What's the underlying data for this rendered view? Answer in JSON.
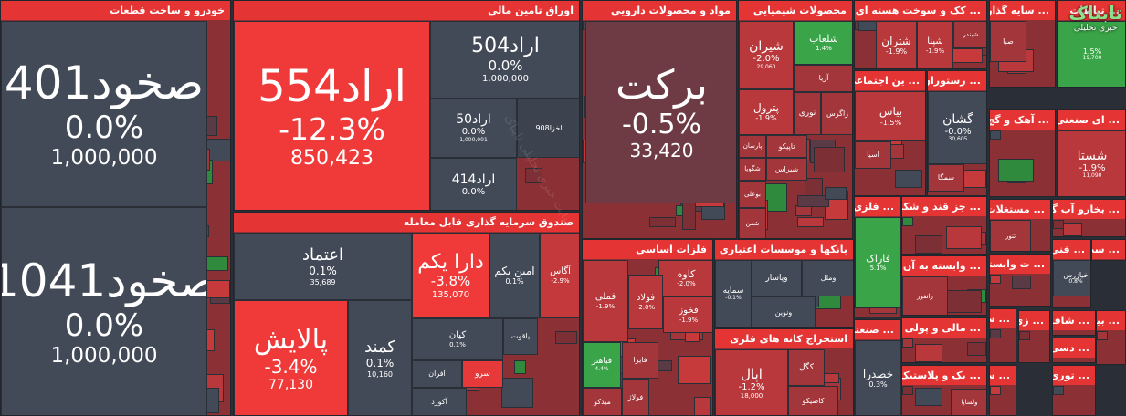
{
  "logo": {
    "title": "تابناک",
    "subtitle": "خبری تحلیلی"
  },
  "watermark": "سایت خبری تحلیلی تابناک",
  "sectors": [
    {
      "title": "خودرو و ساخت قطعات",
      "tiles": [
        {
          "name": "صخود401",
          "change": "0.0%",
          "volume": "1,000,000",
          "color": "#434a57"
        },
        {
          "name": "صخود1041",
          "change": "0.0%",
          "volume": "1,000,000",
          "color": "#434a57"
        }
      ]
    },
    {
      "title": "اوراق تامین مالی",
      "tiles": [
        {
          "name": "اراد554",
          "change": "-12.3%",
          "volume": "850,423",
          "color": "#f03a3a"
        },
        {
          "name": "اراد504",
          "change": "0.0%",
          "volume": "1,000,000",
          "color": "#434a57"
        },
        {
          "name": "اراد50",
          "change": "0.0%",
          "volume": "1,000,001",
          "color": "#434a57"
        },
        {
          "name": "اخزا908",
          "color": "#3c434f"
        },
        {
          "name": "اراد414",
          "change": "0.0%",
          "color": "#434a57"
        }
      ]
    },
    {
      "title": "صندوق سرمایه گذاری قابل معامله",
      "tiles": [
        {
          "name": "اعتماد",
          "change": "0.1%",
          "volume": "35,689",
          "color": "#434a57"
        },
        {
          "name": "پالایش",
          "change": "-3.4%",
          "volume": "77,130",
          "color": "#f03a3a"
        },
        {
          "name": "کمند",
          "change": "0.1%",
          "volume": "10,160",
          "color": "#434a57"
        },
        {
          "name": "دارا یکم",
          "change": "-3.8%",
          "volume": "135,070",
          "color": "#f03a3a"
        },
        {
          "name": "امین یکم",
          "change": "0.1%",
          "color": "#434a57"
        },
        {
          "name": "آگاس",
          "change": "-2.9%",
          "color": "#c4393c"
        },
        {
          "name": "کیان",
          "change": "0.1%",
          "color": "#434a57"
        },
        {
          "name": "یاقوت",
          "color": "#434a57"
        },
        {
          "name": "افران",
          "color": "#434a57"
        },
        {
          "name": "سرو",
          "color": "#e63a3a"
        },
        {
          "name": "آکورد",
          "color": "#434a57"
        }
      ]
    },
    {
      "title": "مواد و محصولات دارویی",
      "tiles": [
        {
          "name": "برکت",
          "change": "-0.5%",
          "volume": "33,420",
          "color": "#6e3b45"
        }
      ]
    },
    {
      "title": "محصولات شیمیایی",
      "tiles": [
        {
          "name": "شیران",
          "change": "-2.0%",
          "volume": "29,060",
          "color": "#b8383b"
        },
        {
          "name": "شلعاب",
          "change": "1.4%",
          "color": "#3aa548"
        },
        {
          "name": "آریا",
          "color": "#a3363a"
        },
        {
          "name": "پترول",
          "change": "-1.9%",
          "color": "#b8383b"
        },
        {
          "name": "نوری",
          "color": "#a3363a"
        },
        {
          "name": "زاگرس",
          "color": "#a3363a"
        },
        {
          "name": "پارسان",
          "color": "#a3363a"
        },
        {
          "name": "تاپیکو",
          "color": "#a3363a"
        },
        {
          "name": "شگویا",
          "color": "#a3363a"
        },
        {
          "name": "شیراس",
          "color": "#a3363a"
        },
        {
          "name": "بوعلی",
          "color": "#a3363a"
        },
        {
          "name": "شفن",
          "color": "#a3363a"
        }
      ]
    },
    {
      "title": "... کک و سوخت هسته ای",
      "tiles": [
        {
          "name": "شتران",
          "change": "-1.9%",
          "color": "#b8383b"
        },
        {
          "name": "شپنا",
          "change": "-1.9%",
          "color": "#b8383b"
        },
        {
          "name": "شبندر",
          "color": "#a3363a"
        }
      ]
    },
    {
      "title": "... سایه گذاریها",
      "tiles": [
        {
          "name": "صبا",
          "color": "#a3363a"
        }
      ]
    },
    {
      "title": "... تباطات",
      "tiles": [
        {
          "change": "1.5%",
          "volume": "19,700",
          "color": "#3aa548"
        }
      ]
    },
    {
      "title": "... ین اجتماعی",
      "tiles": [
        {
          "name": "بیاس",
          "change": "-1.5%",
          "color": "#b8383b"
        },
        {
          "name": "اسیا",
          "color": "#a3363a"
        }
      ]
    },
    {
      "title": "... رستوران",
      "tiles": [
        {
          "name": "گشان",
          "change": "-0.0%",
          "volume": "30,605",
          "color": "#434a57"
        },
        {
          "name": "سمگا",
          "color": "#a3363a"
        }
      ]
    },
    {
      "title": "... آهک و گچ",
      "tiles": []
    },
    {
      "title": "... ای صنعتی",
      "tiles": [
        {
          "name": "شستا",
          "change": "-1.9%",
          "volume": "11,090",
          "color": "#b8383b"
        }
      ]
    },
    {
      "title": "... فلزی",
      "tiles": [
        {
          "name": "فاراک",
          "change": "5.1%",
          "color": "#3aa548"
        }
      ]
    },
    {
      "title": "... جز قند و شکر",
      "tiles": []
    },
    {
      "title": "... مستغلات",
      "tiles": [
        {
          "name": "ثنور",
          "color": "#a3363a"
        }
      ]
    },
    {
      "title": "... بخارو آب گرم",
      "tiles": []
    },
    {
      "title": "فلزات اساسی",
      "tiles": [
        {
          "name": "کاوه",
          "change": "-2.0%",
          "color": "#b8383b"
        },
        {
          "name": "فملی",
          "change": "-1.9%",
          "color": "#b8383b"
        },
        {
          "name": "فولاد",
          "change": "-2.0%",
          "color": "#b8383b"
        },
        {
          "name": "فخوز",
          "change": "-1.9%",
          "color": "#b8383b"
        },
        {
          "name": "فباهنر",
          "change": "4.4%",
          "color": "#3aa548"
        },
        {
          "name": "فایرا",
          "color": "#a3363a"
        },
        {
          "name": "فولاژ",
          "color": "#a3363a"
        },
        {
          "name": "میدکو",
          "color": "#a3363a"
        }
      ]
    },
    {
      "title": "بانکها و موسسات اعتباری",
      "tiles": [
        {
          "name": "سمایه",
          "change": "-0.1%",
          "color": "#434a57"
        },
        {
          "name": "وپاسار",
          "color": "#434a57"
        },
        {
          "name": "وملل",
          "color": "#434a57"
        },
        {
          "name": "ونوین",
          "color": "#434a57"
        }
      ]
    },
    {
      "title": "استخراج کانه های فلزی",
      "tiles": [
        {
          "name": "اپال",
          "change": "-1.2%",
          "volume": "18,000",
          "color": "#b8383b"
        },
        {
          "name": "کگل",
          "color": "#a3363a"
        },
        {
          "name": "کاصیکو",
          "color": "#a3363a"
        }
      ]
    },
    {
      "title": "... وابسته به آن",
      "tiles": [
        {
          "name": "رانفور",
          "color": "#a3363a"
        }
      ]
    },
    {
      "title": "... صنعتی",
      "tiles": [
        {
          "name": "خصدرا",
          "change": "0.3%",
          "color": "#434a57"
        }
      ]
    },
    {
      "title": "... مالی و پولی",
      "tiles": []
    },
    {
      "title": "... یک و پلاستیک",
      "tiles": [
        {
          "name": "ولساپا",
          "color": "#a3363a"
        }
      ]
    },
    {
      "title": "... سط",
      "tiles": []
    },
    {
      "title": "... فنی",
      "tiles": [
        {
          "name": "خیازرس",
          "change": "0.8%",
          "color": "#434a57"
        }
      ]
    },
    {
      "title": "... ت وابسته",
      "tiles": []
    },
    {
      "title": "... سکر",
      "tiles": []
    },
    {
      "title": "... شاف",
      "tiles": []
    },
    {
      "title": "... بیک",
      "tiles": []
    },
    {
      "title": "... زی",
      "tiles": []
    },
    {
      "title": "... دسی",
      "tiles": []
    },
    {
      "title": "... توری",
      "tiles": []
    },
    {
      "title": "... سالی",
      "tiles": []
    }
  ]
}
